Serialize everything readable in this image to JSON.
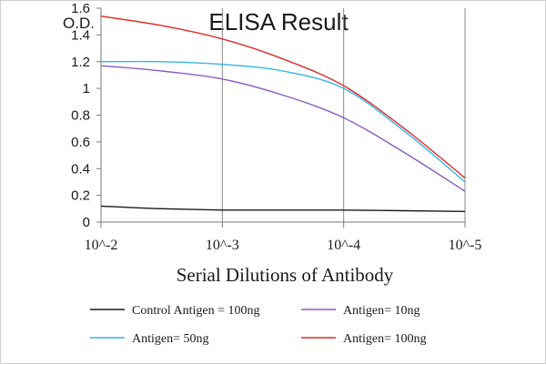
{
  "chart_data": {
    "type": "line",
    "title": "ELISA Result",
    "ylabel": "O.D.",
    "xlabel": "Serial Dilutions  of Antibody",
    "x": [
      -2,
      -3,
      -4,
      -5
    ],
    "x_tick_labels": [
      "10^-2",
      "10^-3",
      "10^-4",
      "10^-5"
    ],
    "y_ticks": [
      0,
      0.2,
      0.4,
      0.6,
      0.8,
      1,
      1.2,
      1.4,
      1.6
    ],
    "y_tick_labels": [
      "0",
      "0.2",
      "0.4",
      "0.6",
      "0.8",
      "1",
      "1.2",
      "1.4",
      "1.6"
    ],
    "ylim": [
      0,
      1.6
    ],
    "xlim": [
      -2,
      -5
    ],
    "grid": "vertical",
    "legend_position": "bottom",
    "series": [
      {
        "name": "Control Antigen = 100ng",
        "color": "#1a1a1a",
        "points": [
          [
            -2,
            0.12
          ],
          [
            -2.5,
            0.1
          ],
          [
            -3,
            0.09
          ],
          [
            -3.5,
            0.09
          ],
          [
            -4,
            0.09
          ],
          [
            -4.5,
            0.085
          ],
          [
            -5,
            0.08
          ]
        ]
      },
      {
        "name": "Antigen= 10ng",
        "color": "#8a5cc0",
        "points": [
          [
            -2,
            1.17
          ],
          [
            -2.5,
            1.13
          ],
          [
            -3,
            1.07
          ],
          [
            -3.5,
            0.95
          ],
          [
            -4,
            0.78
          ],
          [
            -4.5,
            0.52
          ],
          [
            -5,
            0.23
          ]
        ]
      },
      {
        "name": "Antigen= 50ng",
        "color": "#33b5e5",
        "points": [
          [
            -2,
            1.2
          ],
          [
            -2.5,
            1.2
          ],
          [
            -3,
            1.18
          ],
          [
            -3.5,
            1.13
          ],
          [
            -4,
            1.0
          ],
          [
            -4.5,
            0.68
          ],
          [
            -5,
            0.3
          ]
        ]
      },
      {
        "name": "Antigen= 100ng",
        "color": "#e02a2a",
        "points": [
          [
            -2,
            1.54
          ],
          [
            -2.5,
            1.47
          ],
          [
            -3,
            1.37
          ],
          [
            -3.5,
            1.22
          ],
          [
            -4,
            1.02
          ],
          [
            -4.5,
            0.7
          ],
          [
            -5,
            0.33
          ]
        ]
      }
    ]
  }
}
